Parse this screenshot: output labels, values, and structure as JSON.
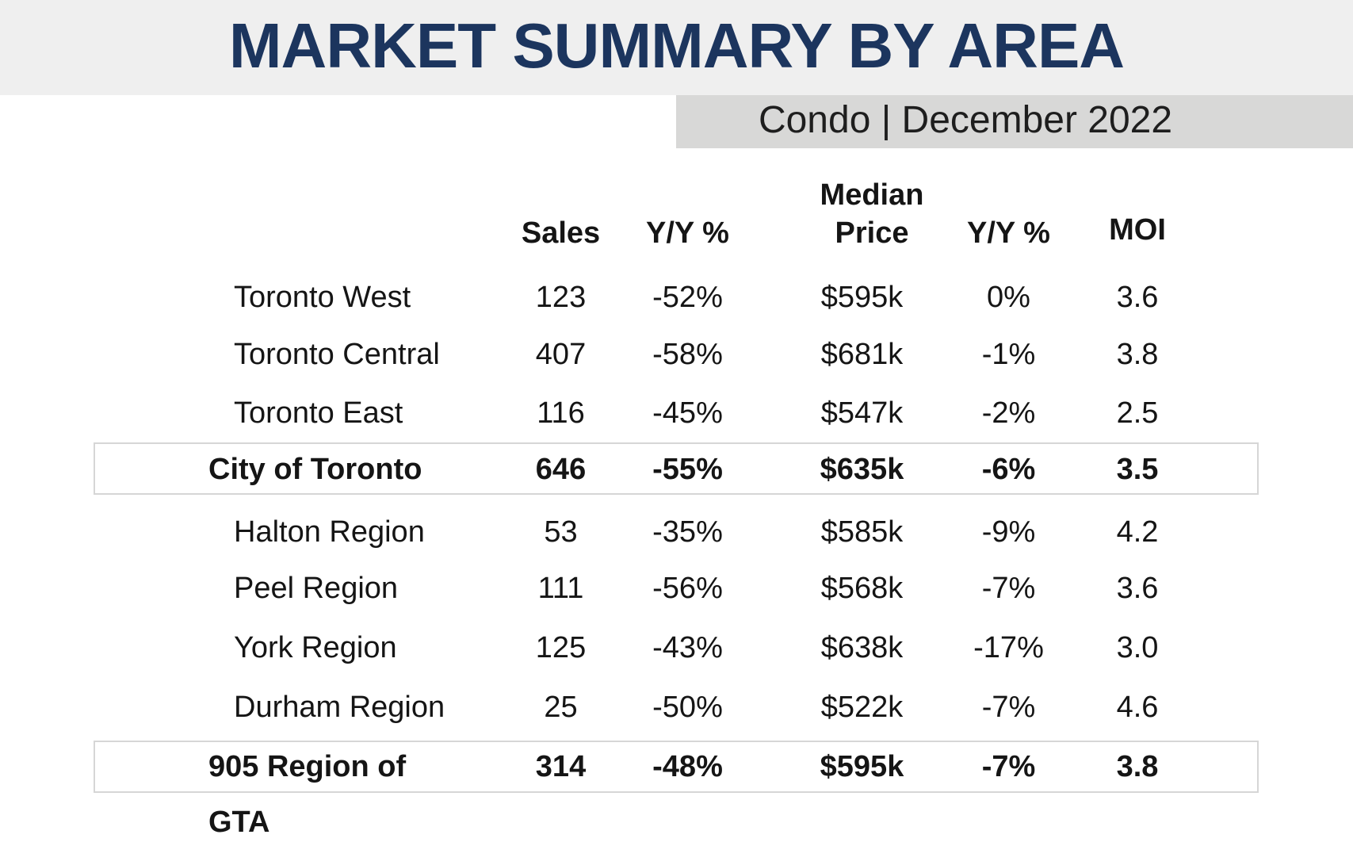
{
  "header": {
    "title": "MARKET SUMMARY BY AREA",
    "subtitle": "Condo | December 2022"
  },
  "columns": {
    "sales": "Sales",
    "sales_yy": "Y/Y %",
    "median_line1": "Median",
    "median_line2": "Price",
    "price_yy": "Y/Y %",
    "moi": "MOI"
  },
  "rows": [
    {
      "area": "Toronto West",
      "sales": "123",
      "sales_yy": "-52%",
      "median": "$595k",
      "price_yy": "0%",
      "moi": "3.6"
    },
    {
      "area": "Toronto Central",
      "sales": "407",
      "sales_yy": "-58%",
      "median": "$681k",
      "price_yy": "-1%",
      "moi": "3.8"
    },
    {
      "area": "Toronto East",
      "sales": "116",
      "sales_yy": "-45%",
      "median": "$547k",
      "price_yy": "-2%",
      "moi": "2.5"
    },
    {
      "area": "City of Toronto",
      "sales": "646",
      "sales_yy": "-55%",
      "median": "$635k",
      "price_yy": "-6%",
      "moi": "3.5"
    },
    {
      "area": "Halton Region",
      "sales": "53",
      "sales_yy": "-35%",
      "median": "$585k",
      "price_yy": "-9%",
      "moi": "4.2"
    },
    {
      "area": "Peel Region",
      "sales": "111",
      "sales_yy": "-56%",
      "median": "$568k",
      "price_yy": "-7%",
      "moi": "3.6"
    },
    {
      "area": "York Region",
      "sales": "125",
      "sales_yy": "-43%",
      "median": "$638k",
      "price_yy": "-17%",
      "moi": "3.0"
    },
    {
      "area": "Durham Region",
      "sales": "25",
      "sales_yy": "-50%",
      "median": "$522k",
      "price_yy": "-7%",
      "moi": "4.6"
    },
    {
      "area": "905 Region of GTA",
      "sales": "314",
      "sales_yy": "-48%",
      "median": "$595k",
      "price_yy": "-7%",
      "moi": "3.8"
    }
  ],
  "colors": {
    "title": "#1c355e",
    "title_band": "#efefef",
    "subtitle_band": "#d8d8d7",
    "box_border": "#d6d6d6"
  }
}
